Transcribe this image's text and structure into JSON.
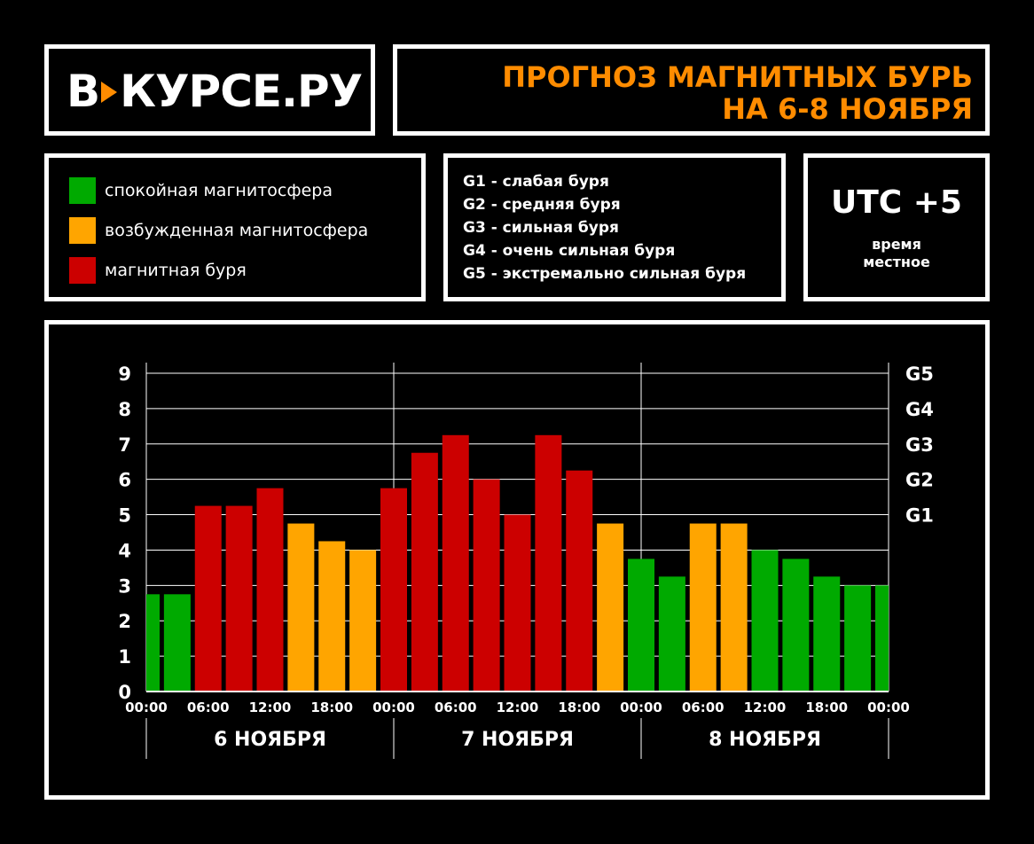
{
  "logo": {
    "part1": "В",
    "part2": "КУРСЕ.РУ"
  },
  "title": {
    "line1": "ПРОГНОЗ МАГНИТНЫХ БУРЬ",
    "line2": "НА 6-8 НОЯБРЯ"
  },
  "legend": [
    {
      "label": "спокойная магнитосфера",
      "color": "#00aa00"
    },
    {
      "label": "возбужденная магнитосфера",
      "color": "#ffa500"
    },
    {
      "label": "магнитная буря",
      "color": "#cc0000"
    }
  ],
  "g_scale": [
    "G1 - слабая буря",
    "G2 - средняя буря",
    "G3 - сильная буря",
    "G4 - очень сильная буря",
    "G5 - экстремально сильная буря"
  ],
  "timezone": {
    "main": "UTC +5",
    "sub_line1": "время",
    "sub_line2": "местное"
  },
  "chart_data": {
    "type": "bar",
    "y_ticks": [
      "0",
      "1",
      "2",
      "3",
      "4",
      "5",
      "6",
      "7",
      "8",
      "9"
    ],
    "ylim": [
      0,
      9
    ],
    "right_labels": [
      {
        "label": "G1",
        "y": 5
      },
      {
        "label": "G2",
        "y": 6
      },
      {
        "label": "G3",
        "y": 7
      },
      {
        "label": "G4",
        "y": 8
      },
      {
        "label": "G5",
        "y": 9
      }
    ],
    "x_ticks": [
      "00:00",
      "06:00",
      "12:00",
      "18:00",
      "00:00",
      "06:00",
      "12:00",
      "18:00",
      "00:00",
      "06:00",
      "12:00",
      "18:00",
      "00:00"
    ],
    "days": [
      "6 НОЯБРЯ",
      "7 НОЯБРЯ",
      "8 НОЯБРЯ"
    ],
    "values": [
      2.75,
      2.75,
      5.25,
      5.25,
      5.75,
      4.75,
      4.25,
      4.0,
      5.75,
      6.75,
      7.25,
      6.0,
      5.0,
      7.25,
      6.25,
      4.75,
      3.75,
      3.25,
      4.75,
      4.75,
      4.0,
      3.75,
      3.25,
      3.0,
      3.0
    ],
    "levels": [
      "calm",
      "calm",
      "storm",
      "storm",
      "storm",
      "excited",
      "excited",
      "excited",
      "storm",
      "storm",
      "storm",
      "storm",
      "storm",
      "storm",
      "storm",
      "excited",
      "calm",
      "calm",
      "excited",
      "excited",
      "calm",
      "calm",
      "calm",
      "calm",
      "calm"
    ],
    "colors": {
      "calm": "#00aa00",
      "excited": "#ffa500",
      "storm": "#cc0000"
    },
    "grid": true
  }
}
